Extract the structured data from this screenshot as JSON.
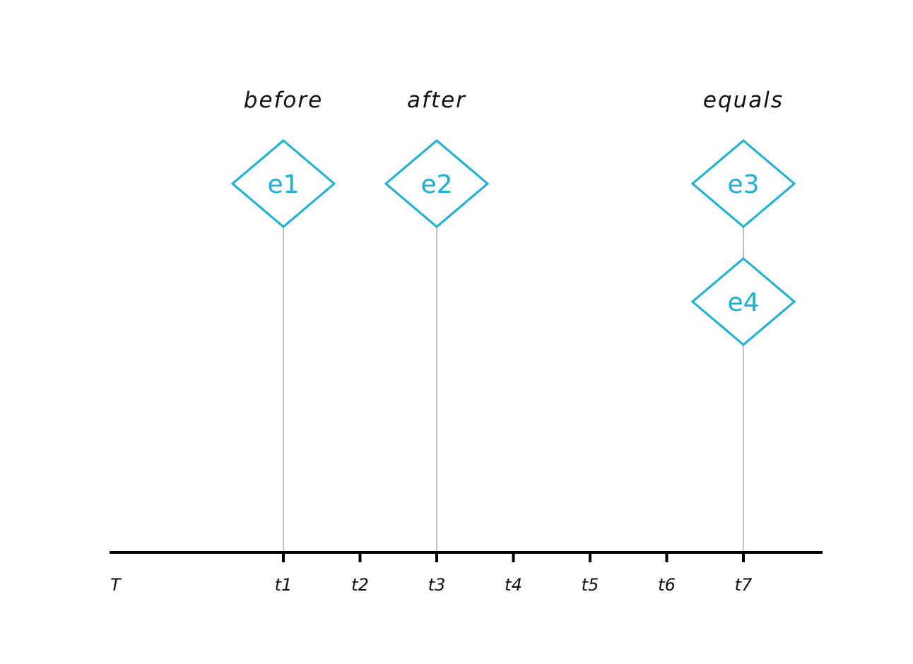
{
  "axis": {
    "label": "T",
    "ticks": [
      "t1",
      "t2",
      "t3",
      "t4",
      "t5",
      "t6",
      "t7"
    ]
  },
  "relations": [
    {
      "label": "before",
      "event": "e1"
    },
    {
      "label": "after",
      "event": "e2"
    },
    {
      "label": "equals",
      "event": "e3"
    }
  ],
  "events": [
    {
      "label": "e1",
      "time": "t1",
      "row": 0
    },
    {
      "label": "e2",
      "time": "t3",
      "row": 0
    },
    {
      "label": "e3",
      "time": "t7",
      "row": 0
    },
    {
      "label": "e4",
      "time": "t7",
      "row": 1
    }
  ],
  "colors": {
    "event": "#16b2d8",
    "axis": "#000000",
    "stem": "#c2c2c2",
    "text": "#111111"
  }
}
